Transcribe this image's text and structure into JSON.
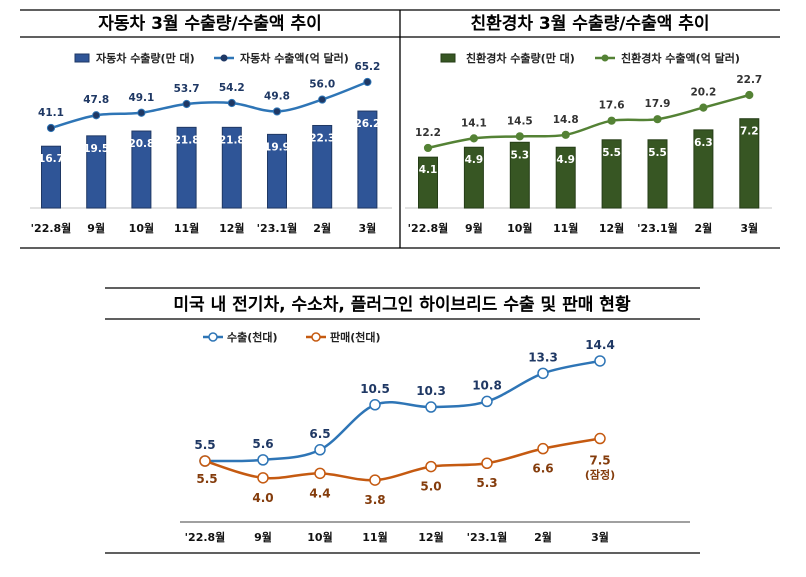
{
  "chart_data": [
    {
      "type": "bar+line",
      "title": "자동차 3월 수출량/수출액 추이",
      "categories": [
        "'22.8월",
        "9월",
        "10월",
        "11월",
        "12월",
        "'23.1월",
        "2월",
        "3월"
      ],
      "series": [
        {
          "name": "자동차 수출량(만 대)",
          "kind": "bar",
          "values": [
            16.7,
            19.5,
            20.8,
            21.8,
            21.8,
            19.9,
            22.3,
            26.2
          ],
          "color": "#2f5597"
        },
        {
          "name": "자동차 수출액(억 달러)",
          "kind": "line",
          "values": [
            41.1,
            47.8,
            49.1,
            53.7,
            54.2,
            49.8,
            56.0,
            65.2
          ],
          "color": "#2e75b6"
        }
      ],
      "legend": "top",
      "grid": false
    },
    {
      "type": "bar+line",
      "title": "친환경차 3월 수출량/수출액 추이",
      "categories": [
        "'22.8월",
        "9월",
        "10월",
        "11월",
        "12월",
        "'23.1월",
        "2월",
        "3월"
      ],
      "series": [
        {
          "name": "친환경차 수출량(만 대)",
          "kind": "bar",
          "values": [
            4.1,
            4.9,
            5.3,
            4.9,
            5.5,
            5.5,
            6.3,
            7.2
          ],
          "color": "#375623"
        },
        {
          "name": "친환경차 수출액(억 달러)",
          "kind": "line",
          "values": [
            12.2,
            14.1,
            14.5,
            14.8,
            17.6,
            17.9,
            20.2,
            22.7
          ],
          "color": "#548235"
        }
      ],
      "legend": "top",
      "grid": false
    },
    {
      "type": "line",
      "title": "미국 내 전기차, 수소차, 플러그인 하이브리드 수출 및 판매 현황",
      "categories": [
        "'22.8월",
        "9월",
        "10월",
        "11월",
        "12월",
        "'23.1월",
        "2월",
        "3월"
      ],
      "series": [
        {
          "name": "수출(천대)",
          "values": [
            5.5,
            5.6,
            6.5,
            10.5,
            10.3,
            10.8,
            13.3,
            14.4
          ],
          "color": "#2e75b6",
          "label_color": "#1f3864"
        },
        {
          "name": "판매(천대)",
          "values": [
            5.5,
            4.0,
            4.4,
            3.8,
            5.0,
            5.3,
            6.6,
            7.5
          ],
          "color": "#c55a11",
          "label_color": "#843c0c"
        }
      ],
      "annotations": [
        {
          "category": "3월",
          "series": "판매(천대)",
          "text": "(잠정)"
        }
      ],
      "legend": "top-left",
      "grid": false
    }
  ]
}
